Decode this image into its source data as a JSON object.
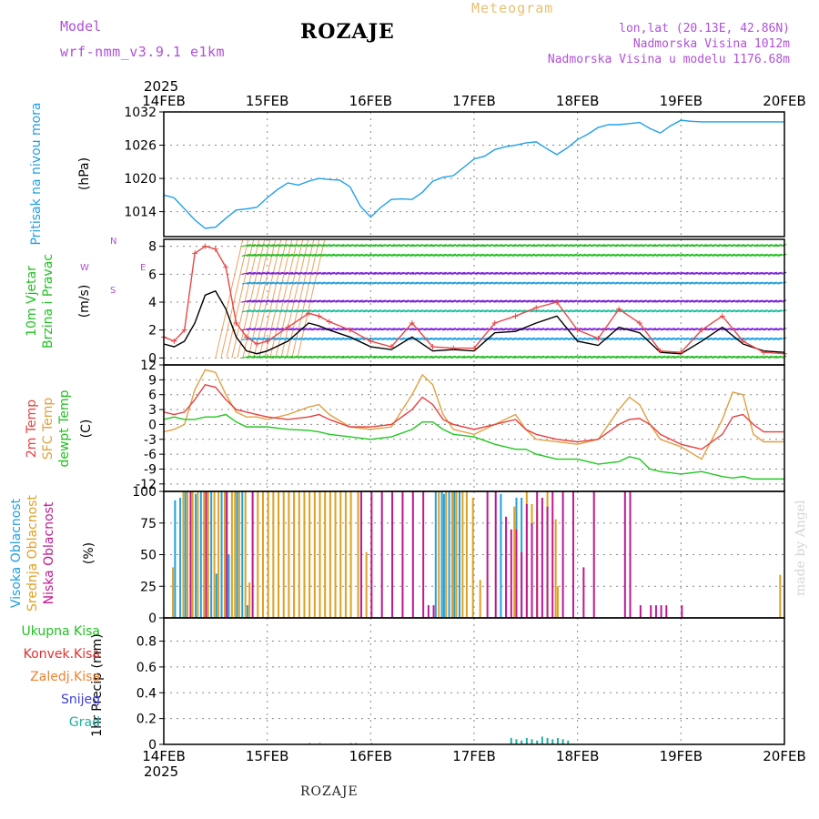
{
  "header": {
    "model_label": "Model",
    "model_name": "wrf-nmm_v3.9.1 e1km",
    "station": "ROZAJE",
    "meteogram": "Meteogram",
    "coords": "lon,lat (20.13E, 42.86N)",
    "elevation": "Nadmorska Visina 1012m",
    "model_elevation": "Nadmorska Visina u modelu 1176.68m"
  },
  "watermark": "made by Angel",
  "footer": "ROZAJE",
  "colors": {
    "pressure": "#1ea0e8",
    "wind_speed": "#000000",
    "wind_gust": "#e84848",
    "t2m": "#e84040",
    "sfc": "#e0a040",
    "dewpt": "#20c820",
    "high_cloud": "#20a0e0",
    "mid_cloud": "#e0a020",
    "low_cloud": "#c01890",
    "total_precip": "#20a020",
    "conv_precip": "#e03030",
    "frozen_precip": "#f08030",
    "snow": "#4040d8",
    "graupel": "#20b0a0"
  },
  "chart_data": [
    {
      "type": "line",
      "panel": "pressure",
      "xaxis": {
        "year": "2025",
        "ticks": [
          "14FEB",
          "15FEB",
          "16FEB",
          "17FEB",
          "18FEB",
          "19FEB",
          "20FEB"
        ]
      },
      "ylabel_main": "Pritisak na nivou mora",
      "ylabel_unit": "(hPa)",
      "yticks": [
        1014,
        1020,
        1026,
        1032
      ],
      "ylim": [
        1009.5,
        1032
      ],
      "x": [
        0,
        0.1,
        0.2,
        0.3,
        0.4,
        0.5,
        0.6,
        0.7,
        0.8,
        0.9,
        1.0,
        1.1,
        1.2,
        1.3,
        1.4,
        1.5,
        1.6,
        1.7,
        1.8,
        1.9,
        2.0,
        2.1,
        2.2,
        2.3,
        2.4,
        2.5,
        2.6,
        2.7,
        2.8,
        2.9,
        3.0,
        3.1,
        3.2,
        3.3,
        3.4,
        3.5,
        3.6,
        3.7,
        3.8,
        3.9,
        4.0,
        4.1,
        4.2,
        4.3,
        4.4,
        4.5,
        4.6,
        4.7,
        4.8,
        4.9,
        5.0,
        5.1,
        5.2,
        5.3,
        5.4,
        5.5,
        5.6,
        5.7,
        5.8,
        5.9,
        6.0
      ],
      "series": [
        {
          "values": [
            1017,
            1016.5,
            1014.5,
            1012.5,
            1011,
            1011.2,
            1012.8,
            1014.3,
            1014.5,
            1014.8,
            1016.5,
            1018,
            1019.2,
            1018.8,
            1019.5,
            1020,
            1019.8,
            1019.7,
            1018.5,
            1015,
            1013,
            1014.8,
            1016.2,
            1016.3,
            1016.2,
            1017.5,
            1019.5,
            1020.2,
            1020.5,
            1022,
            1023.5,
            1024,
            1025.2,
            1025.7,
            1026,
            1026.4,
            1026.6,
            1025.4,
            1024.3,
            1025.5,
            1027,
            1028,
            1029.2,
            1029.7,
            1029.7,
            1029.9,
            1030.1,
            1029,
            1028.2,
            1029.5,
            1030.5,
            1030.3,
            1030.2,
            1030.2,
            1030.2,
            1030.2,
            1030.2,
            1030.2,
            1030.2,
            1030.2,
            1030.2
          ]
        }
      ]
    },
    {
      "type": "line",
      "panel": "wind",
      "ylabel_main": "10m Vjetar",
      "ylabel_sub": "Brzina i Pravac",
      "ylabel_unit": "(m/s)",
      "compass": {
        "w": "W",
        "e": "E",
        "n": "N",
        "s": "S"
      },
      "yticks": [
        0,
        2,
        4,
        6,
        8
      ],
      "ylim": [
        -0.5,
        8.5
      ],
      "x": [
        0,
        0.1,
        0.2,
        0.3,
        0.4,
        0.5,
        0.6,
        0.7,
        0.8,
        0.9,
        1.0,
        1.2,
        1.4,
        1.5,
        1.6,
        1.8,
        2.0,
        2.2,
        2.4,
        2.6,
        2.8,
        3.0,
        3.2,
        3.4,
        3.6,
        3.8,
        4.0,
        4.2,
        4.4,
        4.6,
        4.8,
        5.0,
        5.2,
        5.4,
        5.6,
        5.8,
        6.0
      ],
      "series": [
        {
          "name": "speed",
          "values": [
            1.0,
            0.8,
            1.2,
            2.5,
            4.5,
            4.8,
            3.5,
            1.5,
            0.5,
            0.3,
            0.5,
            1.2,
            2.5,
            2.3,
            2.0,
            1.5,
            0.8,
            0.6,
            1.5,
            0.5,
            0.6,
            0.5,
            1.8,
            1.9,
            2.5,
            3.0,
            1.2,
            0.9,
            2.2,
            1.8,
            0.4,
            0.3,
            1.2,
            2.2,
            1.0,
            0.5,
            0.4
          ]
        },
        {
          "name": "gust",
          "values": [
            1.5,
            1.2,
            2.0,
            7.5,
            8.0,
            7.8,
            6.5,
            2.5,
            1.5,
            1.0,
            1.2,
            2.2,
            3.2,
            3.0,
            2.6,
            2.0,
            1.2,
            0.8,
            2.5,
            0.8,
            0.7,
            0.7,
            2.5,
            3.0,
            3.6,
            4.0,
            2.0,
            1.4,
            3.5,
            2.5,
            0.5,
            0.4,
            2.0,
            3.0,
            1.2,
            0.4,
            0.3
          ]
        }
      ]
    },
    {
      "type": "line",
      "panel": "temperature",
      "ylabel_main": "2m Temp",
      "ylabel_sub": "SFC Temp",
      "ylabel_sub2": "dewpt Temp",
      "ylabel_unit": "(C)",
      "yticks": [
        -12,
        -9,
        -6,
        -3,
        0,
        3,
        6,
        9,
        12
      ],
      "ylim": [
        -13.5,
        12
      ],
      "x": [
        0,
        0.1,
        0.2,
        0.3,
        0.4,
        0.5,
        0.6,
        0.7,
        0.8,
        0.9,
        1.0,
        1.2,
        1.4,
        1.5,
        1.6,
        1.8,
        2.0,
        2.2,
        2.4,
        2.5,
        2.6,
        2.7,
        2.8,
        3.0,
        3.2,
        3.4,
        3.5,
        3.6,
        3.8,
        4.0,
        4.2,
        4.4,
        4.5,
        4.6,
        4.7,
        4.8,
        5.0,
        5.2,
        5.4,
        5.5,
        5.6,
        5.7,
        5.8,
        6.0
      ],
      "series": [
        {
          "name": "2m",
          "values": [
            2.5,
            2,
            2.5,
            5,
            8,
            7.5,
            5,
            3,
            2.5,
            2,
            1.5,
            1,
            1.5,
            2,
            1,
            -0.5,
            -0.5,
            0,
            3,
            5.5,
            4,
            1,
            0,
            -1,
            0,
            1,
            -1,
            -2,
            -3,
            -3.5,
            -3,
            0,
            1,
            1.2,
            0,
            -2,
            -4,
            -5,
            -2,
            1.5,
            2,
            0,
            -1.5,
            -1.5
          ]
        },
        {
          "name": "sfc",
          "values": [
            -1.5,
            -1,
            0,
            7,
            11,
            10.5,
            6,
            2.5,
            1.5,
            1.5,
            1,
            2,
            3.5,
            4,
            2,
            -0.5,
            -1,
            -0.5,
            6,
            10,
            8,
            2,
            -1,
            -2,
            0,
            2,
            -1,
            -3,
            -3.5,
            -4,
            -3,
            3,
            5.5,
            4,
            0,
            -3,
            -4.5,
            -7,
            1,
            6.5,
            6,
            -2,
            -3.5,
            -3.5
          ]
        },
        {
          "name": "dewpt",
          "values": [
            1,
            1.5,
            1,
            1,
            1.5,
            1.5,
            2,
            0.5,
            -0.5,
            -0.5,
            -0.5,
            -1,
            -1.2,
            -1.5,
            -2,
            -2.5,
            -3,
            -2.5,
            -1,
            0.5,
            0.5,
            -1,
            -2,
            -2.5,
            -4,
            -5,
            -5,
            -6,
            -7,
            -7,
            -8,
            -7.5,
            -6.5,
            -7,
            -9,
            -9.5,
            -10,
            -9.5,
            -10.5,
            -10.8,
            -10.5,
            -11,
            -11,
            -11
          ]
        }
      ]
    },
    {
      "type": "bar",
      "panel": "clouds",
      "ylabel_main": "Visoka Oblacnost",
      "ylabel_sub": "Srednja Oblacnost",
      "ylabel_sub2": "Niska Oblacnost",
      "ylabel_unit": "(%)",
      "yticks": [
        0,
        25,
        50,
        75,
        100
      ],
      "ylim": [
        0,
        100
      ],
      "series": [
        {
          "name": "high",
          "x": [
            0.1,
            0.15,
            0.2,
            0.3,
            0.35,
            0.45,
            0.5,
            0.55,
            0.6,
            0.62,
            0.7,
            0.75,
            0.8,
            2.62,
            2.68,
            2.7,
            2.75,
            2.8,
            2.85,
            3.25,
            3.4,
            3.45
          ],
          "values": [
            93,
            95,
            100,
            98,
            100,
            100,
            35,
            100,
            100,
            50,
            100,
            100,
            10,
            100,
            100,
            98,
            100,
            100,
            100,
            98,
            95,
            95
          ]
        },
        {
          "name": "mid",
          "x": [
            0.08,
            0.18,
            0.22,
            0.27,
            0.32,
            0.38,
            0.42,
            0.48,
            0.52,
            0.58,
            0.65,
            0.68,
            0.72,
            0.78,
            0.82,
            0.9,
            0.95,
            1.0,
            1.05,
            1.1,
            1.15,
            1.2,
            1.25,
            1.3,
            1.35,
            1.4,
            1.45,
            1.5,
            1.55,
            1.6,
            1.65,
            1.7,
            1.75,
            1.8,
            1.87,
            1.95,
            2.65,
            2.72,
            2.78,
            2.82,
            2.88,
            2.92,
            2.98,
            3.05,
            3.3,
            3.38,
            3.5,
            3.55,
            3.6,
            3.7,
            3.78,
            3.8,
            5.95
          ],
          "values": [
            40,
            100,
            100,
            100,
            100,
            100,
            100,
            100,
            100,
            100,
            100,
            100,
            100,
            100,
            28,
            100,
            100,
            100,
            100,
            100,
            100,
            100,
            100,
            100,
            100,
            100,
            100,
            100,
            100,
            100,
            100,
            100,
            100,
            100,
            100,
            52,
            100,
            100,
            100,
            100,
            100,
            100,
            95,
            30,
            50,
            88,
            100,
            90,
            85,
            100,
            78,
            25,
            34
          ]
        },
        {
          "name": "low",
          "x": [
            0.25,
            0.4,
            0.6,
            0.85,
            1.9,
            2.0,
            2.1,
            2.2,
            2.3,
            2.4,
            2.5,
            2.55,
            2.6,
            3.12,
            3.2,
            3.3,
            3.35,
            3.4,
            3.45,
            3.5,
            3.55,
            3.6,
            3.65,
            3.7,
            3.75,
            3.85,
            3.95,
            4.05,
            4.15,
            4.45,
            4.5,
            4.6,
            4.7,
            4.75,
            4.8,
            4.85,
            5.0
          ],
          "values": [
            100,
            100,
            100,
            100,
            100,
            100,
            100,
            100,
            100,
            100,
            100,
            10,
            10,
            100,
            100,
            80,
            70,
            70,
            52,
            90,
            75,
            100,
            95,
            88,
            100,
            100,
            100,
            40,
            100,
            100,
            100,
            10,
            10,
            10,
            10,
            10,
            10
          ]
        }
      ]
    },
    {
      "type": "bar",
      "panel": "precip",
      "ylabel_main": "1hr Precip",
      "ylabel_unit": "(mm)",
      "yticks": [
        0,
        0.2,
        0.4,
        0.6,
        0.8
      ],
      "ylim": [
        0,
        0.98
      ],
      "legend": [
        "Ukupna Kisa",
        "Konvek.Kisa",
        "Zaledj.Kisa",
        "Snijeg",
        "Grad"
      ],
      "series": [
        {
          "name": "Grad",
          "x": [
            1.4,
            1.5,
            1.8,
            1.85,
            2.0,
            3.35,
            3.4,
            3.45,
            3.5,
            3.55,
            3.6,
            3.65,
            3.7,
            3.75,
            3.8,
            3.85,
            3.9
          ],
          "values": [
            0.01,
            0.01,
            0.01,
            0.01,
            0.01,
            0.05,
            0.04,
            0.03,
            0.05,
            0.04,
            0.03,
            0.06,
            0.05,
            0.04,
            0.05,
            0.04,
            0.03
          ]
        }
      ]
    }
  ]
}
